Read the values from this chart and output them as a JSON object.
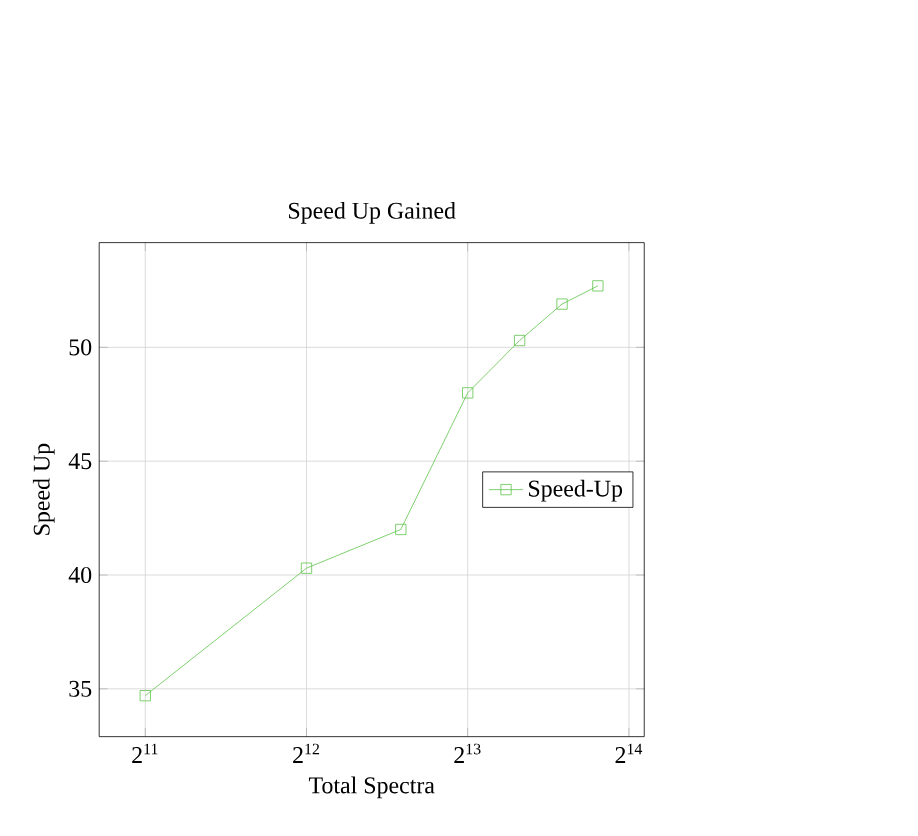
{
  "chart_data": {
    "type": "line",
    "title": "Speed Up Gained",
    "xlabel": "Total Spectra",
    "ylabel": "Speed Up",
    "x": [
      2048,
      4096,
      6144,
      8192,
      10240,
      12288,
      14336
    ],
    "series": [
      {
        "name": "Speed-Up",
        "color": "#5ec44a",
        "values": [
          34.7,
          40.3,
          42.0,
          48.0,
          50.3,
          51.9,
          52.7
        ]
      }
    ],
    "log": "x",
    "xlim": [
      1680,
      17500
    ],
    "ylim": [
      32.9,
      54.6
    ],
    "xticks": [
      {
        "value": 2048,
        "label": "2$^{11}$"
      },
      {
        "value": 4096,
        "label": "2$^{12}$"
      },
      {
        "value": 8192,
        "label": "2$^{13}$"
      },
      {
        "value": 16384,
        "label": "2$^{14}$"
      }
    ],
    "yticks": [
      35,
      40,
      45,
      50
    ],
    "grid": true,
    "legend": "right",
    "marker": "square",
    "line_style": "solid"
  }
}
